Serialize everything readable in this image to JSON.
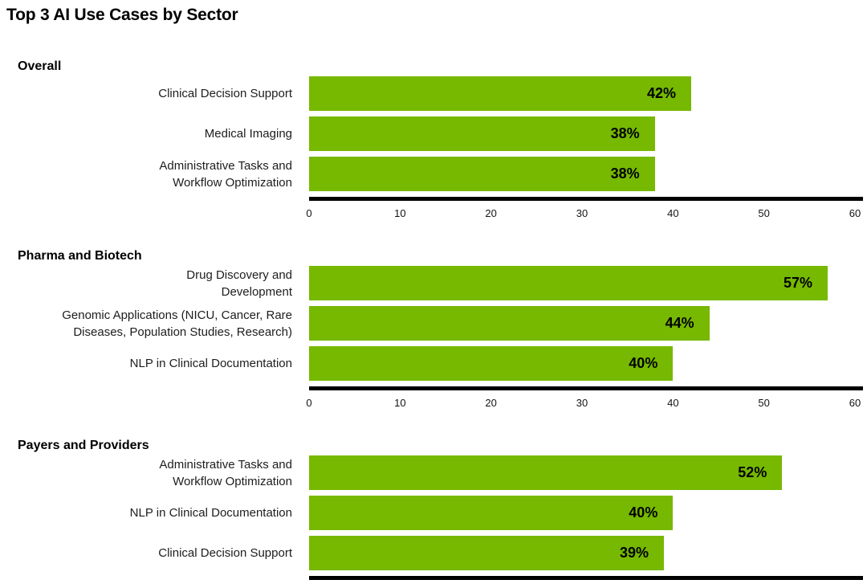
{
  "title": "Top 3 AI Use Cases by Sector",
  "colors": {
    "bar": "#76B900",
    "axis": "#000000",
    "text": "#1d1d1d"
  },
  "chart_data": [
    {
      "type": "bar",
      "orientation": "horizontal",
      "group": "Overall",
      "categories": [
        "Clinical Decision Support",
        "Medical Imaging",
        "Administrative Tasks and\nWorkflow Optimization"
      ],
      "values": [
        42,
        38,
        38
      ],
      "value_labels": [
        "42%",
        "38%",
        "38%"
      ],
      "xlim": [
        0,
        60
      ],
      "xticks": [
        0,
        10,
        20,
        30,
        40,
        50,
        60
      ],
      "grid": false,
      "legend": false
    },
    {
      "type": "bar",
      "orientation": "horizontal",
      "group": "Pharma and Biotech",
      "categories": [
        "Drug Discovery and\nDevelopment",
        "Genomic Applications (NICU, Cancer, Rare\nDiseases, Population Studies, Research)",
        "NLP in Clinical Documentation"
      ],
      "values": [
        57,
        44,
        40
      ],
      "value_labels": [
        "57%",
        "44%",
        "40%"
      ],
      "xlim": [
        0,
        60
      ],
      "xticks": [
        0,
        10,
        20,
        30,
        40,
        50,
        60
      ],
      "grid": false,
      "legend": false
    },
    {
      "type": "bar",
      "orientation": "horizontal",
      "group": "Payers and Providers",
      "categories": [
        "Administrative Tasks and\nWorkflow Optimization",
        "NLP in Clinical Documentation",
        "Clinical Decision Support"
      ],
      "values": [
        52,
        40,
        39
      ],
      "value_labels": [
        "52%",
        "40%",
        "39%"
      ],
      "xlim": [
        0,
        60
      ],
      "xticks": [
        0,
        10,
        20,
        30,
        40,
        50,
        60
      ],
      "grid": false,
      "legend": false
    }
  ]
}
